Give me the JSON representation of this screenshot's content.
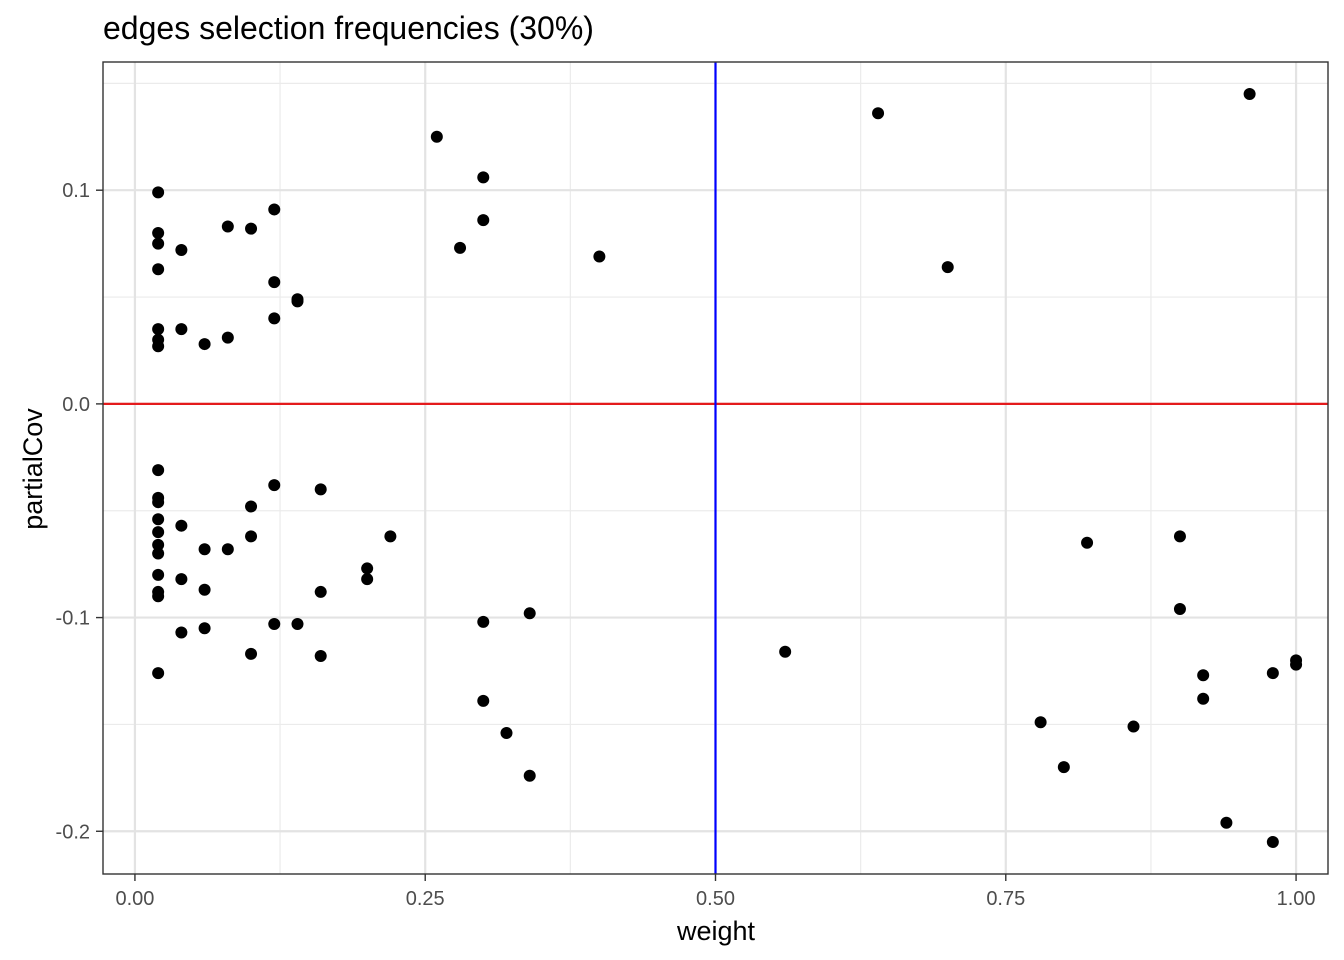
{
  "chart_data": {
    "type": "scatter",
    "title": "edges selection frequencies (30%)",
    "xlabel": "weight",
    "ylabel": "partialCov",
    "xlim": [
      -0.0275,
      1.0275
    ],
    "ylim": [
      -0.22,
      0.16
    ],
    "x_ticks": [
      {
        "value": 0.0,
        "label": "0.00"
      },
      {
        "value": 0.25,
        "label": "0.25"
      },
      {
        "value": 0.5,
        "label": "0.50"
      },
      {
        "value": 0.75,
        "label": "0.75"
      },
      {
        "value": 1.0,
        "label": "1.00"
      }
    ],
    "y_ticks": [
      {
        "value": 0.1,
        "label": "0.1"
      },
      {
        "value": 0.0,
        "label": "0.0"
      },
      {
        "value": -0.1,
        "label": "-0.1"
      },
      {
        "value": -0.2,
        "label": "-0.2"
      }
    ],
    "x_minor": [
      0.125,
      0.375,
      0.625,
      0.875
    ],
    "y_minor": [
      0.15,
      0.05,
      -0.05,
      -0.15
    ],
    "grid": true,
    "reference_lines": [
      {
        "orientation": "horizontal",
        "value": 0.0,
        "color": "#e41a1c"
      },
      {
        "orientation": "vertical",
        "value": 0.5,
        "color": "#0000ff"
      }
    ],
    "point_color": "#000000",
    "points": [
      {
        "x": 0.02,
        "y": 0.099
      },
      {
        "x": 0.02,
        "y": 0.08
      },
      {
        "x": 0.02,
        "y": 0.075
      },
      {
        "x": 0.02,
        "y": 0.063
      },
      {
        "x": 0.02,
        "y": 0.035
      },
      {
        "x": 0.02,
        "y": 0.03
      },
      {
        "x": 0.02,
        "y": 0.027
      },
      {
        "x": 0.04,
        "y": 0.072
      },
      {
        "x": 0.04,
        "y": 0.035
      },
      {
        "x": 0.06,
        "y": 0.028
      },
      {
        "x": 0.08,
        "y": 0.083
      },
      {
        "x": 0.08,
        "y": 0.031
      },
      {
        "x": 0.1,
        "y": 0.082
      },
      {
        "x": 0.12,
        "y": 0.091
      },
      {
        "x": 0.12,
        "y": 0.057
      },
      {
        "x": 0.12,
        "y": 0.04
      },
      {
        "x": 0.14,
        "y": 0.049
      },
      {
        "x": 0.14,
        "y": 0.048
      },
      {
        "x": 0.26,
        "y": 0.125
      },
      {
        "x": 0.28,
        "y": 0.073
      },
      {
        "x": 0.3,
        "y": 0.106
      },
      {
        "x": 0.3,
        "y": 0.086
      },
      {
        "x": 0.4,
        "y": 0.069
      },
      {
        "x": 0.64,
        "y": 0.136
      },
      {
        "x": 0.7,
        "y": 0.064
      },
      {
        "x": 0.96,
        "y": 0.145
      },
      {
        "x": 0.02,
        "y": -0.031
      },
      {
        "x": 0.02,
        "y": -0.044
      },
      {
        "x": 0.02,
        "y": -0.046
      },
      {
        "x": 0.02,
        "y": -0.054
      },
      {
        "x": 0.02,
        "y": -0.06
      },
      {
        "x": 0.02,
        "y": -0.066
      },
      {
        "x": 0.02,
        "y": -0.07
      },
      {
        "x": 0.02,
        "y": -0.08
      },
      {
        "x": 0.02,
        "y": -0.088
      },
      {
        "x": 0.02,
        "y": -0.09
      },
      {
        "x": 0.02,
        "y": -0.126
      },
      {
        "x": 0.04,
        "y": -0.057
      },
      {
        "x": 0.04,
        "y": -0.082
      },
      {
        "x": 0.04,
        "y": -0.107
      },
      {
        "x": 0.06,
        "y": -0.068
      },
      {
        "x": 0.06,
        "y": -0.087
      },
      {
        "x": 0.06,
        "y": -0.105
      },
      {
        "x": 0.08,
        "y": -0.068
      },
      {
        "x": 0.1,
        "y": -0.048
      },
      {
        "x": 0.1,
        "y": -0.062
      },
      {
        "x": 0.1,
        "y": -0.117
      },
      {
        "x": 0.12,
        "y": -0.038
      },
      {
        "x": 0.12,
        "y": -0.103
      },
      {
        "x": 0.14,
        "y": -0.103
      },
      {
        "x": 0.16,
        "y": -0.04
      },
      {
        "x": 0.16,
        "y": -0.088
      },
      {
        "x": 0.16,
        "y": -0.118
      },
      {
        "x": 0.2,
        "y": -0.077
      },
      {
        "x": 0.2,
        "y": -0.082
      },
      {
        "x": 0.22,
        "y": -0.062
      },
      {
        "x": 0.3,
        "y": -0.102
      },
      {
        "x": 0.3,
        "y": -0.139
      },
      {
        "x": 0.32,
        "y": -0.154
      },
      {
        "x": 0.34,
        "y": -0.098
      },
      {
        "x": 0.34,
        "y": -0.174
      },
      {
        "x": 0.56,
        "y": -0.116
      },
      {
        "x": 0.78,
        "y": -0.149
      },
      {
        "x": 0.8,
        "y": -0.17
      },
      {
        "x": 0.82,
        "y": -0.065
      },
      {
        "x": 0.86,
        "y": -0.151
      },
      {
        "x": 0.9,
        "y": -0.062
      },
      {
        "x": 0.9,
        "y": -0.096
      },
      {
        "x": 0.92,
        "y": -0.127
      },
      {
        "x": 0.92,
        "y": -0.138
      },
      {
        "x": 0.94,
        "y": -0.196
      },
      {
        "x": 0.98,
        "y": -0.126
      },
      {
        "x": 0.98,
        "y": -0.205
      },
      {
        "x": 1.0,
        "y": -0.12
      },
      {
        "x": 1.0,
        "y": -0.122
      }
    ]
  }
}
